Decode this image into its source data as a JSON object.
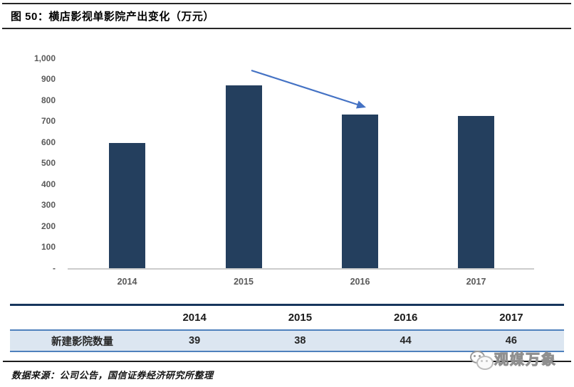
{
  "figure": {
    "title": "图 50：横店影视单影院产出变化（万元）",
    "source_note": "数据来源：公司公告，国信证券经济研究所整理"
  },
  "chart_data": {
    "type": "bar",
    "title": "横店影视单影院产出变化（万元）",
    "categories": [
      "2014",
      "2015",
      "2016",
      "2017"
    ],
    "values": [
      595,
      870,
      730,
      725
    ],
    "xlabel": "",
    "ylabel": "",
    "ylim": [
      0,
      1000
    ],
    "ytick_step": 100,
    "ytick_labels": [
      "1,000",
      "900",
      "800",
      "700",
      "600",
      "500",
      "400",
      "300",
      "200",
      "100",
      "-"
    ],
    "grid": false,
    "legend": "none",
    "annotation": {
      "type": "arrow",
      "from_category": "2015",
      "to_category": "2016",
      "meaning": "decline from 2015 peak to 2016"
    }
  },
  "table": {
    "columns": [
      "2014",
      "2015",
      "2016",
      "2017"
    ],
    "rows": [
      {
        "label": "新建影院数量",
        "values": [
          "39",
          "38",
          "44",
          "46"
        ]
      }
    ]
  },
  "watermark": {
    "text": "观媒万象",
    "icon": "chat-bubbles-icon"
  },
  "colors": {
    "bar": "#243F5E",
    "arrow": "#4472C4",
    "axis_text": "#595959",
    "axis_line": "#CCCCCC",
    "table_top_border": "#17365D",
    "table_line": "#4F81BD",
    "table_row_bg": "#DCE6F1"
  }
}
